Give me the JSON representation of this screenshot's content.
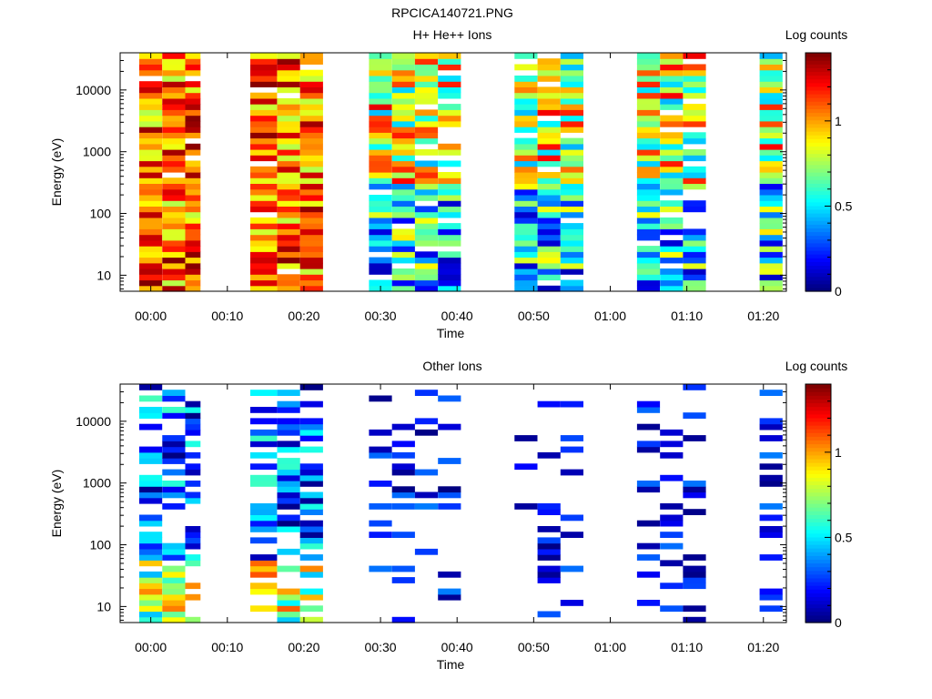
{
  "figure_title": "RPCICA140721.PNG",
  "chart_data": [
    {
      "type": "heatmap",
      "title": "H+ He++ Ions",
      "xlabel": "Time",
      "ylabel": "Energy (eV)",
      "x_ticks": [
        "00:00",
        "00:10",
        "00:20",
        "00:30",
        "00:40",
        "00:50",
        "01:00",
        "01:10",
        "01:20"
      ],
      "y_scale": "log",
      "y_ticks": [
        "10",
        "100",
        "1000",
        "10000"
      ],
      "ylim": [
        5.5,
        40000
      ],
      "colorbar": {
        "label": "Log counts",
        "ticks": [
          "0",
          "0.5",
          "1"
        ],
        "range": [
          0,
          1.4
        ],
        "colormap": "jet"
      },
      "columns": [
        {
          "start_min": -1.5,
          "end_min": 1.5,
          "level": "high"
        },
        {
          "start_min": 1.5,
          "end_min": 4.5,
          "level": "high"
        },
        {
          "start_min": 4.5,
          "end_min": 6.5,
          "level": "high"
        },
        {
          "start_min": 13.0,
          "end_min": 16.5,
          "level": "high"
        },
        {
          "start_min": 16.5,
          "end_min": 19.5,
          "level": "high"
        },
        {
          "start_min": 19.5,
          "end_min": 22.5,
          "level": "high"
        },
        {
          "start_min": 28.5,
          "end_min": 31.5,
          "level": "mid"
        },
        {
          "start_min": 31.5,
          "end_min": 34.5,
          "level": "mid"
        },
        {
          "start_min": 34.5,
          "end_min": 37.5,
          "level": "mid"
        },
        {
          "start_min": 37.5,
          "end_min": 40.5,
          "level": "mid"
        },
        {
          "start_min": 47.5,
          "end_min": 50.5,
          "level": "mid"
        },
        {
          "start_min": 50.5,
          "end_min": 53.5,
          "level": "mid"
        },
        {
          "start_min": 53.5,
          "end_min": 56.5,
          "level": "mid"
        },
        {
          "start_min": 63.5,
          "end_min": 66.5,
          "level": "mid"
        },
        {
          "start_min": 66.5,
          "end_min": 69.5,
          "level": "mid"
        },
        {
          "start_min": 69.5,
          "end_min": 72.5,
          "level": "mid"
        },
        {
          "start_min": 79.5,
          "end_min": 82.5,
          "level": "mid"
        }
      ]
    },
    {
      "type": "heatmap",
      "title": "Other Ions",
      "xlabel": "Time",
      "ylabel": "Energy (eV)",
      "x_ticks": [
        "00:00",
        "00:10",
        "00:20",
        "00:30",
        "00:40",
        "00:50",
        "01:00",
        "01:10",
        "01:20"
      ],
      "y_scale": "log",
      "y_ticks": [
        "10",
        "100",
        "1000",
        "10000"
      ],
      "ylim": [
        5.5,
        40000
      ],
      "colorbar": {
        "label": "Log counts",
        "ticks": [
          "0",
          "0.5",
          "1"
        ],
        "range": [
          0,
          1.4
        ],
        "colormap": "jet"
      },
      "columns": [
        {
          "start_min": -1.5,
          "end_min": 1.5,
          "level": "low"
        },
        {
          "start_min": 1.5,
          "end_min": 4.5,
          "level": "low"
        },
        {
          "start_min": 4.5,
          "end_min": 6.5,
          "level": "low"
        },
        {
          "start_min": 13.0,
          "end_min": 16.5,
          "level": "low"
        },
        {
          "start_min": 16.5,
          "end_min": 19.5,
          "level": "low"
        },
        {
          "start_min": 19.5,
          "end_min": 22.5,
          "level": "low"
        },
        {
          "start_min": 28.5,
          "end_min": 31.5,
          "level": "sparse"
        },
        {
          "start_min": 31.5,
          "end_min": 34.5,
          "level": "sparse"
        },
        {
          "start_min": 34.5,
          "end_min": 37.5,
          "level": "sparse"
        },
        {
          "start_min": 37.5,
          "end_min": 40.5,
          "level": "sparse"
        },
        {
          "start_min": 47.5,
          "end_min": 50.5,
          "level": "sparse"
        },
        {
          "start_min": 50.5,
          "end_min": 53.5,
          "level": "sparse"
        },
        {
          "start_min": 53.5,
          "end_min": 56.5,
          "level": "sparse"
        },
        {
          "start_min": 63.5,
          "end_min": 66.5,
          "level": "sparse"
        },
        {
          "start_min": 66.5,
          "end_min": 69.5,
          "level": "sparse"
        },
        {
          "start_min": 69.5,
          "end_min": 72.5,
          "level": "sparse"
        },
        {
          "start_min": 79.5,
          "end_min": 82.5,
          "level": "sparse"
        }
      ]
    }
  ]
}
